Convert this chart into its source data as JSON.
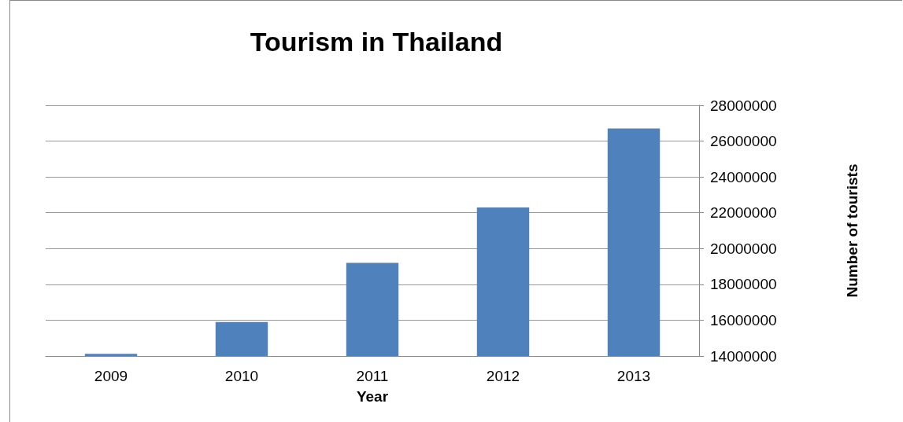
{
  "chart_data": {
    "type": "bar",
    "title": "Tourism in Thailand",
    "xlabel": "Year",
    "ylabel": "Number of tourists",
    "categories": [
      "2009",
      "2010",
      "2011",
      "2012",
      "2013"
    ],
    "values": [
      14120000,
      15900000,
      19200000,
      22300000,
      26700000
    ],
    "color": "#4f81bd",
    "ylim": [
      14000000,
      28000000
    ],
    "yticks": [
      14000000,
      16000000,
      18000000,
      20000000,
      22000000,
      24000000,
      26000000,
      28000000
    ],
    "grid": "y"
  }
}
